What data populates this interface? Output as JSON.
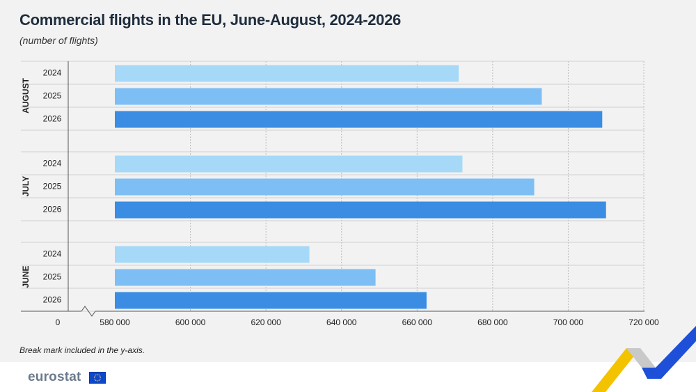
{
  "title": "Commercial flights in the EU, June-August, 2024-2026",
  "subtitle": "(number of flights)",
  "note": "Break mark included in the y-axis.",
  "logo_text": "eurostat",
  "colors": {
    "2024": "#a6d9f7",
    "2025": "#7dbff5",
    "2026": "#3a8de3",
    "grid": "#bdbdbd",
    "band_line": "#d0d0d0"
  },
  "chart_data": {
    "type": "bar",
    "orientation": "horizontal",
    "title": "Commercial flights in the EU, June-August, 2024-2026",
    "subtitle": "(number of flights)",
    "x_break": true,
    "xlim": [
      580000,
      720000
    ],
    "x_tick_labels": [
      "0",
      "580 000",
      "600 000",
      "620 000",
      "640 000",
      "660 000",
      "680 000",
      "700 000",
      "720 000"
    ],
    "x_tick_values": [
      580000,
      600000,
      620000,
      640000,
      660000,
      680000,
      700000,
      720000
    ],
    "groups": [
      {
        "name": "AUGUST",
        "bars": [
          {
            "label": "2024",
            "value": 671000
          },
          {
            "label": "2025",
            "value": 693000
          },
          {
            "label": "2026",
            "value": 709000
          }
        ]
      },
      {
        "name": "JULY",
        "bars": [
          {
            "label": "2024",
            "value": 672000
          },
          {
            "label": "2025",
            "value": 691000
          },
          {
            "label": "2026",
            "value": 710000
          }
        ]
      },
      {
        "name": "JUNE",
        "bars": [
          {
            "label": "2024",
            "value": 631500
          },
          {
            "label": "2025",
            "value": 649000
          },
          {
            "label": "2026",
            "value": 662500
          }
        ]
      }
    ]
  }
}
